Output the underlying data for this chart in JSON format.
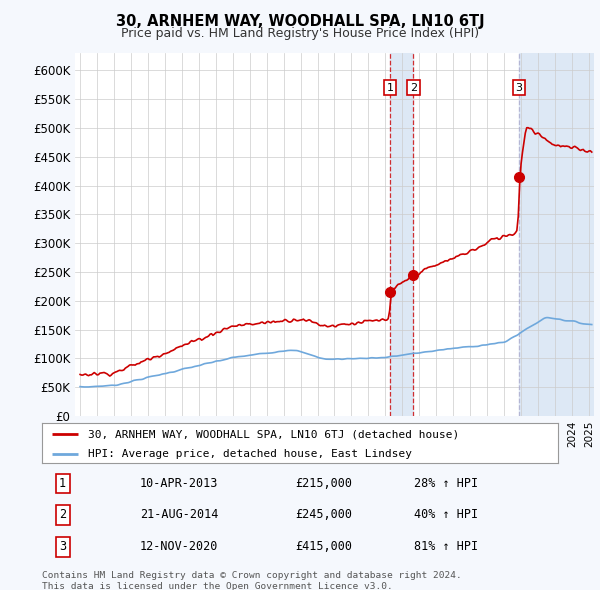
{
  "title": "30, ARNHEM WAY, WOODHALL SPA, LN10 6TJ",
  "subtitle": "Price paid vs. HM Land Registry's House Price Index (HPI)",
  "ylabel_ticks": [
    "£0",
    "£50K",
    "£100K",
    "£150K",
    "£200K",
    "£250K",
    "£300K",
    "£350K",
    "£400K",
    "£450K",
    "£500K",
    "£550K",
    "£600K"
  ],
  "ytick_values": [
    0,
    50000,
    100000,
    150000,
    200000,
    250000,
    300000,
    350000,
    400000,
    450000,
    500000,
    550000,
    600000
  ],
  "ylim": [
    0,
    630000
  ],
  "xlim_start": 1994.7,
  "xlim_end": 2025.3,
  "hpi_color": "#6fa8dc",
  "hpi_color_light": "#cfe2f3",
  "price_color": "#cc0000",
  "sale_marker_color": "#cc0000",
  "vline_color_12": "#cc0000",
  "vline_color_3": "#aaaacc",
  "transactions": [
    {
      "num": 1,
      "date_x": 2013.27,
      "price": 215000,
      "label": "1"
    },
    {
      "num": 2,
      "date_x": 2014.64,
      "price": 245000,
      "label": "2"
    },
    {
      "num": 3,
      "date_x": 2020.87,
      "price": 415000,
      "label": "3"
    }
  ],
  "transaction_table": [
    {
      "num": "1",
      "date": "10-APR-2013",
      "price": "£215,000",
      "pct": "28% ↑ HPI"
    },
    {
      "num": "2",
      "date": "21-AUG-2014",
      "price": "£245,000",
      "pct": "40% ↑ HPI"
    },
    {
      "num": "3",
      "date": "12-NOV-2020",
      "price": "£415,000",
      "pct": "81% ↑ HPI"
    }
  ],
  "legend_line1": "30, ARNHEM WAY, WOODHALL SPA, LN10 6TJ (detached house)",
  "legend_line2": "HPI: Average price, detached house, East Lindsey",
  "footnote": "Contains HM Land Registry data © Crown copyright and database right 2024.\nThis data is licensed under the Open Government Licence v3.0.",
  "background_color": "#f5f8fd",
  "plot_bg_color": "#ffffff",
  "shade_color": "#dde8f5"
}
